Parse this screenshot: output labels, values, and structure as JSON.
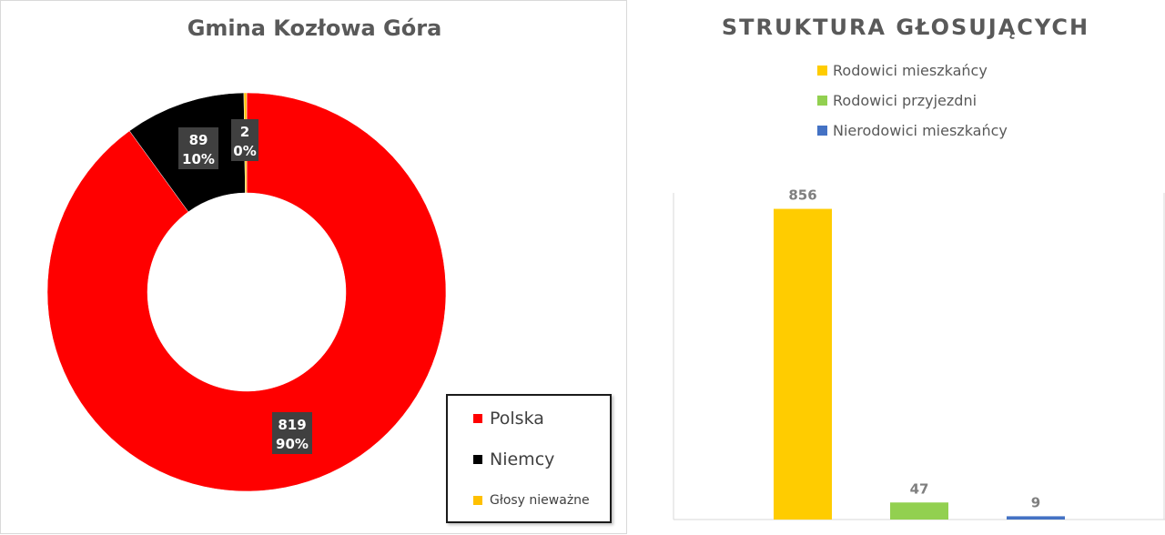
{
  "chart_data": [
    {
      "type": "pie",
      "title": "Gmina Kozłowa Góra",
      "legend_position": "bottom-right",
      "slices": [
        {
          "name": "Polska",
          "value": 819,
          "percent": "90%",
          "color": "#ff0000"
        },
        {
          "name": "Niemcy",
          "value": 89,
          "percent": "10%",
          "color": "#000000"
        },
        {
          "name": "Głosy nieważne",
          "value": 2,
          "percent": "0%",
          "color": "#ffc000"
        }
      ]
    },
    {
      "type": "bar",
      "title": "STRUKTURA GŁOSUJĄCYCH",
      "legend_position": "top",
      "grid": false,
      "ylim": [
        0,
        900
      ],
      "series": [
        {
          "name": "Rodowici mieszkańcy",
          "values": [
            856
          ],
          "color": "#ffcc00"
        },
        {
          "name": "Rodowici przyjezdni",
          "values": [
            47
          ],
          "color": "#92d050"
        },
        {
          "name": "Nierodowici mieszkańcy",
          "values": [
            9
          ],
          "color": "#4472c4"
        }
      ]
    }
  ]
}
